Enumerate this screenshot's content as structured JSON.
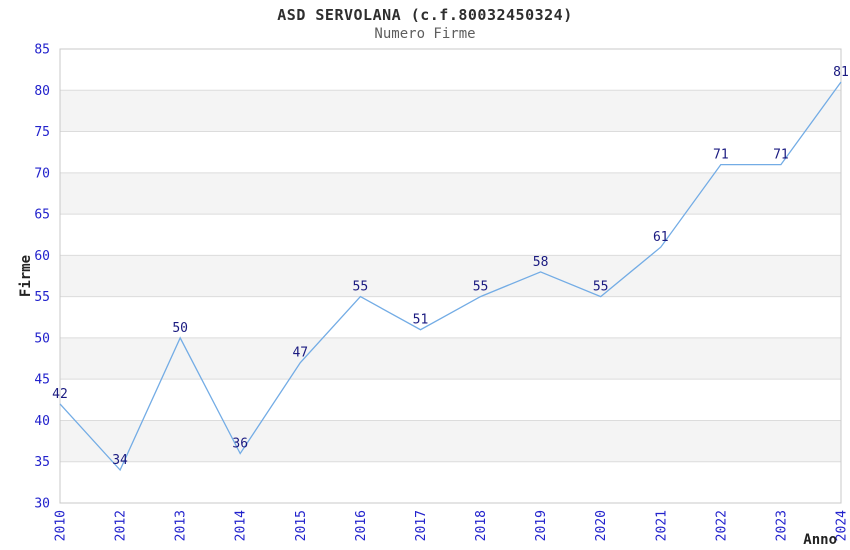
{
  "chart": {
    "title": "ASD SERVOLANA (c.f.80032450324)",
    "subtitle": "Numero Firme",
    "xlabel": "Anno",
    "ylabel": "Firme"
  },
  "chart_data": {
    "type": "line",
    "title": "ASD SERVOLANA (c.f.80032450324)",
    "subtitle": "Numero Firme",
    "xlabel": "Anno",
    "ylabel": "Firme",
    "categories": [
      "2010",
      "2012",
      "2013",
      "2014",
      "2015",
      "2016",
      "2017",
      "2018",
      "2019",
      "2020",
      "2021",
      "2022",
      "2023",
      "2024"
    ],
    "values": [
      42,
      34,
      50,
      36,
      47,
      55,
      51,
      55,
      58,
      55,
      61,
      71,
      71,
      81
    ],
    "ylim": [
      30,
      85
    ],
    "ytick_step": 5,
    "grid": "horizontal-bands-alternating",
    "legend": "none",
    "data_labels_visible": true,
    "colors": {
      "line": "#73ACE5",
      "tick_label": "#2222CC",
      "data_label": "#1A1A80",
      "axis_title": "#222222",
      "title": "#2E2E2E",
      "subtitle": "#5E5E5E",
      "band": "#F4F4F4",
      "gridline": "#DCDCDC",
      "border": "#C8C8C8",
      "background": "#FFFFFF"
    }
  }
}
